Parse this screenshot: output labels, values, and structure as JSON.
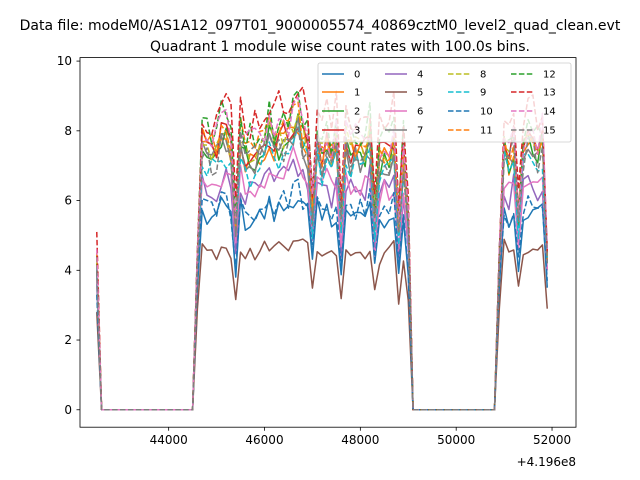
{
  "chart_data": {
    "type": "line",
    "suptitle": "Data file: modeM0/AS1A12_097T01_9000005574_40869cztM0_level2_quad_clean.evt",
    "title": "Quadrant 1 module wise count rates with 100.0s bins.",
    "xlabel": "",
    "ylabel": "",
    "x_offset_label": "+4.196e8",
    "xlim": [
      42150,
      52500
    ],
    "ylim": [
      -0.5,
      10.1
    ],
    "x_ticks": [
      44000,
      46000,
      48000,
      50000,
      52000
    ],
    "x_tick_labels": [
      "44000",
      "46000",
      "48000",
      "50000",
      "52000"
    ],
    "y_ticks": [
      0,
      2,
      4,
      6,
      8,
      10
    ],
    "y_tick_labels": [
      "0",
      "2",
      "4",
      "6",
      "8",
      "10"
    ],
    "legend_position": "top-right",
    "legend_columns": 4,
    "x_range": [
      42500,
      51900
    ],
    "segments": [
      {
        "state": "on",
        "start": 42500,
        "end": 42500
      },
      {
        "state": "off",
        "start": 42600,
        "end": 44500
      },
      {
        "state": "on",
        "start": 44600,
        "end": 49000
      },
      {
        "state": "off",
        "start": 49100,
        "end": 50800
      },
      {
        "state": "on",
        "start": 50900,
        "end": 51900
      }
    ],
    "series": [
      {
        "name": "0",
        "color": "#1f77b4",
        "dash": false,
        "mean": 5.6,
        "first": 3.6,
        "dip": 3.5
      },
      {
        "name": "1",
        "color": "#ff7f0e",
        "dash": false,
        "mean": 7.5,
        "first": 4.5,
        "dip": 4.5
      },
      {
        "name": "2",
        "color": "#2ca02c",
        "dash": false,
        "mean": 7.4,
        "first": 4.0,
        "dip": 4.3
      },
      {
        "name": "3",
        "color": "#d62728",
        "dash": false,
        "mean": 7.6,
        "first": 4.2,
        "dip": 4.5
      },
      {
        "name": "4",
        "color": "#9467bd",
        "dash": false,
        "mean": 6.4,
        "first": 3.9,
        "dip": 4.0
      },
      {
        "name": "5",
        "color": "#8c564b",
        "dash": false,
        "mean": 4.6,
        "first": 2.8,
        "dip": 2.9
      },
      {
        "name": "6",
        "color": "#e377c2",
        "dash": false,
        "mean": 6.5,
        "first": 3.7,
        "dip": 4.0
      },
      {
        "name": "7",
        "color": "#7f7f7f",
        "dash": false,
        "mean": 7.3,
        "first": 4.1,
        "dip": 4.2
      },
      {
        "name": "8",
        "color": "#bcbd22",
        "dash": true,
        "mean": 7.6,
        "first": 4.3,
        "dip": 4.4
      },
      {
        "name": "9",
        "color": "#17becf",
        "dash": true,
        "mean": 7.0,
        "first": 4.1,
        "dip": 4.2
      },
      {
        "name": "10",
        "color": "#1f77b4",
        "dash": true,
        "mean": 5.8,
        "first": 3.3,
        "dip": 3.7
      },
      {
        "name": "11",
        "color": "#ff7f0e",
        "dash": true,
        "mean": 7.7,
        "first": 4.4,
        "dip": 4.3
      },
      {
        "name": "12",
        "color": "#2ca02c",
        "dash": true,
        "mean": 8.1,
        "first": 4.4,
        "dip": 4.6
      },
      {
        "name": "13",
        "color": "#d62728",
        "dash": true,
        "mean": 8.5,
        "first": 5.1,
        "dip": 4.5
      },
      {
        "name": "14",
        "color": "#e377c2",
        "dash": true,
        "mean": 7.9,
        "first": 4.6,
        "dip": 4.6
      },
      {
        "name": "15",
        "color": "#7f7f7f",
        "dash": true,
        "mean": 7.3,
        "first": 4.0,
        "dip": 4.2
      }
    ]
  }
}
